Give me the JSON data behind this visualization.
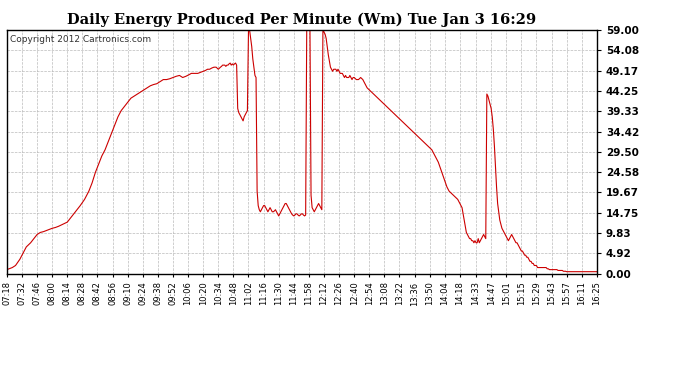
{
  "title": "Daily Energy Produced Per Minute (Wm) Tue Jan 3 16:29",
  "copyright": "Copyright 2012 Cartronics.com",
  "line_color": "#cc0000",
  "bg_color": "#ffffff",
  "plot_bg_color": "#ffffff",
  "grid_color": "#bbbbbb",
  "yticks": [
    0.0,
    4.92,
    9.83,
    14.75,
    19.67,
    24.58,
    29.5,
    34.42,
    39.33,
    44.25,
    49.17,
    54.08,
    59.0
  ],
  "ylim": [
    0.0,
    59.0
  ],
  "xtick_labels": [
    "07:18",
    "07:32",
    "07:46",
    "08:00",
    "08:14",
    "08:28",
    "08:42",
    "08:56",
    "09:10",
    "09:24",
    "09:38",
    "09:52",
    "10:06",
    "10:20",
    "10:34",
    "10:48",
    "11:02",
    "11:16",
    "11:30",
    "11:44",
    "11:58",
    "12:12",
    "12:26",
    "12:40",
    "12:54",
    "13:08",
    "13:22",
    "13:36",
    "13:50",
    "14:04",
    "14:18",
    "14:33",
    "14:47",
    "15:01",
    "15:15",
    "15:29",
    "15:43",
    "15:57",
    "16:11",
    "16:25"
  ],
  "key_t": [
    438,
    440,
    443,
    446,
    450,
    453,
    456,
    460,
    463,
    466,
    469,
    472,
    475,
    478,
    480,
    483,
    486,
    490,
    494,
    497,
    500,
    503,
    506,
    510,
    514,
    517,
    520,
    523,
    526,
    529,
    532,
    535,
    538,
    541,
    544,
    547,
    550,
    553,
    556,
    559,
    562,
    565,
    568,
    571,
    574,
    577,
    580,
    583,
    586,
    589,
    592,
    595,
    598,
    601,
    604,
    607,
    609,
    612,
    615,
    618,
    620,
    622,
    624,
    626,
    628,
    630,
    632,
    634,
    636,
    637,
    638,
    639,
    640,
    641,
    642,
    643,
    644,
    645,
    646,
    647,
    648,
    649,
    650,
    651,
    652,
    653,
    654,
    655,
    656,
    657,
    658,
    659,
    660,
    661,
    662,
    663,
    664,
    665,
    666,
    667,
    668,
    669,
    670,
    671,
    672,
    673,
    674,
    675,
    676,
    677,
    678,
    679,
    680,
    681,
    682,
    683,
    684,
    685,
    686,
    687,
    688,
    689,
    690,
    691,
    692,
    693,
    694,
    695,
    696,
    697,
    698,
    699,
    700,
    701,
    702,
    703,
    704,
    705,
    706,
    707,
    708,
    709,
    710,
    711,
    712,
    713,
    714,
    715,
    716,
    717,
    718,
    719,
    720,
    721,
    722,
    723,
    724,
    725,
    726,
    727,
    728,
    729,
    730,
    731,
    732,
    733,
    734,
    735,
    736,
    737,
    738,
    739,
    740,
    741,
    742,
    743,
    744,
    745,
    746,
    747,
    748,
    749,
    750,
    751,
    752,
    753,
    754,
    755,
    756,
    757,
    758,
    759,
    760,
    762,
    764,
    766,
    768,
    770,
    772,
    774,
    776,
    778,
    780,
    782,
    784,
    786,
    788,
    790,
    792,
    794,
    796,
    798,
    800,
    802,
    804,
    806,
    808,
    810,
    812,
    814,
    816,
    818,
    820,
    822,
    824,
    826,
    828,
    830,
    832,
    834,
    836,
    838,
    840,
    842,
    844,
    846,
    848,
    850,
    852,
    854,
    856,
    858,
    860,
    861,
    862,
    863,
    864,
    865,
    866,
    867,
    868,
    869,
    870,
    871,
    872,
    873,
    874,
    875,
    876,
    877,
    878,
    879,
    880,
    881,
    882,
    883,
    884,
    885,
    886,
    887,
    888,
    889,
    890,
    891,
    892,
    893,
    894,
    895,
    896,
    897,
    898,
    899,
    900,
    901,
    902,
    903,
    904,
    905,
    906,
    907,
    908,
    909,
    910,
    911,
    912,
    913,
    914,
    915,
    916,
    917,
    918,
    919,
    920,
    921,
    922,
    923,
    924,
    925,
    926,
    927,
    928,
    929,
    930,
    931,
    932,
    933,
    934,
    935,
    936,
    937,
    938,
    939,
    940,
    941,
    942,
    943,
    944,
    945,
    946,
    947,
    948,
    949,
    950,
    951,
    952,
    953,
    954,
    955,
    956,
    957,
    958,
    959,
    960,
    961,
    962,
    963,
    964,
    965,
    966,
    967,
    968,
    969,
    970,
    971,
    972,
    973,
    974,
    975,
    976,
    977,
    978,
    979,
    980,
    981,
    982,
    983,
    984,
    985
  ],
  "key_y": [
    1.0,
    1.2,
    1.5,
    2.0,
    3.5,
    5.0,
    6.5,
    7.5,
    8.5,
    9.5,
    10.0,
    10.2,
    10.5,
    10.8,
    11.0,
    11.2,
    11.5,
    12.0,
    12.5,
    13.5,
    14.5,
    15.5,
    16.5,
    18.0,
    20.0,
    22.0,
    24.5,
    26.5,
    28.5,
    30.0,
    32.0,
    34.0,
    36.0,
    38.0,
    39.5,
    40.5,
    41.5,
    42.5,
    43.0,
    43.5,
    44.0,
    44.5,
    45.0,
    45.5,
    45.8,
    46.0,
    46.5,
    47.0,
    47.0,
    47.2,
    47.5,
    47.8,
    48.0,
    47.5,
    47.8,
    48.2,
    48.5,
    48.5,
    48.5,
    48.8,
    49.0,
    49.2,
    49.5,
    49.5,
    49.8,
    50.0,
    50.0,
    49.5,
    50.0,
    50.2,
    50.5,
    50.5,
    50.5,
    50.2,
    50.5,
    50.5,
    50.8,
    51.0,
    50.5,
    50.8,
    50.5,
    50.8,
    51.0,
    50.5,
    40.0,
    39.0,
    38.5,
    38.0,
    37.5,
    37.0,
    38.0,
    38.5,
    39.0,
    39.5,
    59.0,
    59.0,
    57.0,
    55.0,
    52.0,
    50.0,
    48.0,
    47.5,
    20.0,
    16.5,
    15.5,
    15.0,
    15.5,
    16.0,
    16.5,
    16.5,
    16.0,
    15.5,
    15.0,
    15.5,
    16.0,
    15.5,
    15.0,
    15.0,
    15.2,
    15.5,
    15.0,
    14.5,
    14.0,
    14.5,
    15.0,
    15.5,
    16.0,
    16.5,
    17.0,
    17.0,
    16.5,
    16.0,
    15.5,
    15.0,
    14.5,
    14.2,
    14.0,
    14.2,
    14.5,
    14.5,
    14.2,
    14.0,
    14.2,
    14.5,
    14.5,
    14.2,
    14.0,
    14.2,
    59.0,
    59.0,
    59.0,
    59.0,
    19.0,
    16.0,
    15.5,
    15.0,
    15.5,
    16.0,
    16.5,
    17.0,
    16.5,
    16.0,
    15.5,
    59.0,
    58.5,
    58.0,
    57.0,
    55.0,
    53.0,
    51.5,
    50.0,
    49.5,
    49.0,
    49.5,
    49.5,
    49.5,
    49.0,
    49.5,
    49.0,
    48.5,
    48.5,
    48.5,
    48.0,
    47.5,
    48.0,
    47.5,
    47.5,
    47.5,
    48.0,
    47.5,
    47.0,
    47.5,
    47.5,
    47.0,
    47.0,
    47.5,
    47.0,
    46.0,
    45.0,
    44.5,
    44.0,
    43.5,
    43.0,
    42.5,
    42.0,
    41.5,
    41.0,
    40.5,
    40.0,
    39.5,
    39.0,
    38.5,
    38.0,
    37.5,
    37.0,
    36.5,
    36.0,
    35.5,
    35.0,
    34.5,
    34.0,
    33.5,
    33.0,
    32.5,
    32.0,
    31.5,
    31.0,
    30.5,
    30.0,
    29.0,
    28.0,
    27.0,
    25.5,
    24.0,
    22.5,
    21.0,
    20.0,
    19.5,
    19.0,
    18.5,
    18.0,
    17.0,
    16.0,
    14.5,
    13.0,
    11.5,
    10.0,
    9.5,
    9.0,
    8.5,
    8.5,
    8.0,
    8.0,
    7.5,
    8.0,
    7.5,
    7.5,
    8.5,
    7.5,
    8.0,
    8.5,
    9.0,
    9.5,
    9.0,
    8.5,
    43.5,
    43.0,
    42.0,
    41.0,
    40.0,
    38.0,
    35.0,
    31.0,
    26.0,
    21.0,
    17.0,
    15.0,
    13.0,
    12.0,
    11.0,
    10.5,
    10.0,
    9.5,
    9.0,
    8.5,
    8.0,
    8.5,
    9.0,
    9.5,
    9.0,
    8.5,
    8.0,
    7.5,
    7.5,
    7.0,
    6.5,
    6.0,
    5.5,
    5.5,
    5.0,
    4.5,
    4.5,
    4.0,
    4.0,
    3.5,
    3.0,
    3.0,
    2.5,
    2.5,
    2.0,
    2.0,
    2.0,
    1.5,
    1.5,
    1.5,
    1.5,
    1.5,
    1.5,
    1.5,
    1.5,
    1.5,
    1.2,
    1.2,
    1.0,
    1.0,
    1.0,
    1.0,
    1.0,
    1.0,
    1.0,
    1.0,
    0.8,
    0.8,
    0.8,
    0.8,
    0.8,
    0.6,
    0.6,
    0.6,
    0.5,
    0.5,
    0.5,
    0.5,
    0.5,
    0.5,
    0.5,
    0.5,
    0.5,
    0.5,
    0.5,
    0.5,
    0.5,
    0.5,
    0.5,
    0.5,
    0.5,
    0.5,
    0.5,
    0.5,
    0.5,
    0.5,
    0.5,
    0.5,
    0.5,
    0.5,
    0.5,
    0.5,
    0.5
  ]
}
